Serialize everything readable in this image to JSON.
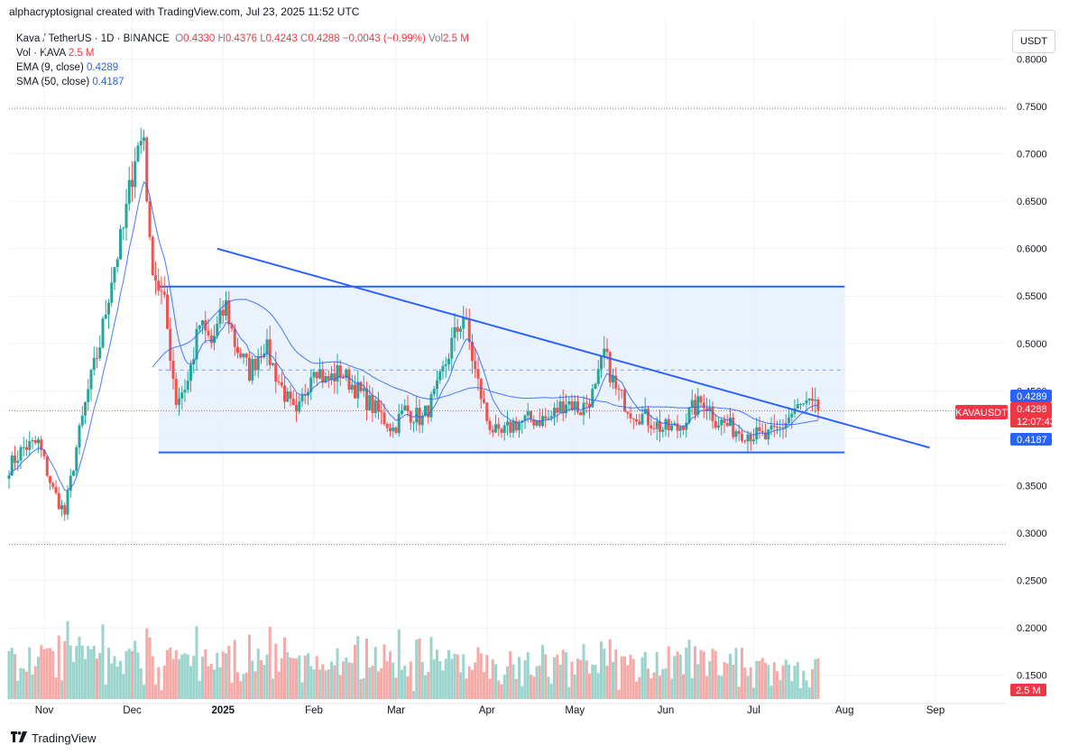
{
  "credit": "alphacryptosignal created with TradingView.com, Jul 23, 2025 11:52 UTC",
  "currency_button": "USDT",
  "logo_text": "TradingView",
  "legend": {
    "symbol": "Kava / TetherUS · 1D · BINANCE",
    "o_label": "O",
    "o": "0.4330",
    "h_label": "H",
    "h": "0.4376",
    "l_label": "L",
    "l": "0.4243",
    "c_label": "C",
    "c": "0.4288",
    "change": "−0.0043 (−0.99%)",
    "vol_label": "Vol",
    "vol": "2.5 M",
    "vol_line_label": "Vol · KAVA",
    "vol_line_value": "2.5 M",
    "ema_label": "EMA (9, close)",
    "ema_value": "0.4289",
    "sma_label": "SMA (50, close)",
    "sma_value": "0.4187"
  },
  "colors": {
    "up": "#26a69a",
    "down": "#ef5350",
    "line": "#2962ff",
    "box": "#e3edfc",
    "vol_up": "#9bd4cc",
    "vol_down": "#f5aaa8"
  },
  "price_badges": {
    "symbol_tag": "KAVAUSDT",
    "ema": "0.4289",
    "close": "0.4288",
    "countdown": "12:07:43",
    "sma": "0.4187",
    "volume": "2.5 M"
  },
  "chart_data": {
    "type": "candlestick",
    "y_ticks": [
      "0.8000",
      "0.7500",
      "0.7000",
      "0.6500",
      "0.6000",
      "0.5500",
      "0.5000",
      "0.4500",
      "0.4000",
      "0.3500",
      "0.3000",
      "0.2500",
      "0.2000",
      "0.1500"
    ],
    "x_ticks": [
      "Nov",
      "Dec",
      "2025",
      "Feb",
      "Mar",
      "Apr",
      "May",
      "Jun",
      "Jul",
      "Aug",
      "Sep"
    ],
    "ylim": [
      0.13,
      0.82
    ],
    "series": [
      {
        "name": "Kava / TetherUS · 1D · BINANCE",
        "kind": "candles"
      },
      {
        "name": "EMA (9, close)",
        "last": 0.4289
      },
      {
        "name": "SMA (50, close)",
        "last": 0.4187
      }
    ],
    "close_path": [
      [
        "2024-10-20",
        0.37
      ],
      [
        "2024-10-25",
        0.39
      ],
      [
        "2024-10-30",
        0.395
      ],
      [
        "2024-11-04",
        0.345
      ],
      [
        "2024-11-08",
        0.32
      ],
      [
        "2024-11-12",
        0.39
      ],
      [
        "2024-11-16",
        0.45
      ],
      [
        "2024-11-20",
        0.5
      ],
      [
        "2024-11-24",
        0.57
      ],
      [
        "2024-11-28",
        0.62
      ],
      [
        "2024-12-02",
        0.7
      ],
      [
        "2024-12-05",
        0.72
      ],
      [
        "2024-12-07",
        0.6
      ],
      [
        "2024-12-09",
        0.57
      ],
      [
        "2024-12-12",
        0.54
      ],
      [
        "2024-12-16",
        0.44
      ],
      [
        "2024-12-20",
        0.46
      ],
      [
        "2024-12-24",
        0.52
      ],
      [
        "2024-12-28",
        0.5
      ],
      [
        "2025-01-02",
        0.54
      ],
      [
        "2025-01-05",
        0.5
      ],
      [
        "2025-01-10",
        0.47
      ],
      [
        "2025-01-15",
        0.5
      ],
      [
        "2025-01-20",
        0.46
      ],
      [
        "2025-01-26",
        0.42
      ],
      [
        "2025-02-01",
        0.48
      ],
      [
        "2025-02-05",
        0.46
      ],
      [
        "2025-02-10",
        0.47
      ],
      [
        "2025-02-16",
        0.45
      ],
      [
        "2025-02-22",
        0.43
      ],
      [
        "2025-02-28",
        0.41
      ],
      [
        "2025-03-04",
        0.43
      ],
      [
        "2025-03-10",
        0.42
      ],
      [
        "2025-03-15",
        0.45
      ],
      [
        "2025-03-20",
        0.5
      ],
      [
        "2025-03-24",
        0.53
      ],
      [
        "2025-03-28",
        0.47
      ],
      [
        "2025-04-01",
        0.42
      ],
      [
        "2025-04-05",
        0.4
      ],
      [
        "2025-04-10",
        0.415
      ],
      [
        "2025-04-16",
        0.42
      ],
      [
        "2025-04-22",
        0.42
      ],
      [
        "2025-04-28",
        0.44
      ],
      [
        "2025-05-03",
        0.43
      ],
      [
        "2025-05-08",
        0.45
      ],
      [
        "2025-05-11",
        0.49
      ],
      [
        "2025-05-15",
        0.45
      ],
      [
        "2025-05-20",
        0.43
      ],
      [
        "2025-05-26",
        0.42
      ],
      [
        "2025-05-31",
        0.41
      ],
      [
        "2025-06-05",
        0.41
      ],
      [
        "2025-06-10",
        0.43
      ],
      [
        "2025-06-14",
        0.44
      ],
      [
        "2025-06-18",
        0.42
      ],
      [
        "2025-06-24",
        0.41
      ],
      [
        "2025-06-30",
        0.405
      ],
      [
        "2025-07-05",
        0.4
      ],
      [
        "2025-07-10",
        0.41
      ],
      [
        "2025-07-15",
        0.43
      ],
      [
        "2025-07-19",
        0.435
      ],
      [
        "2025-07-23",
        0.4288
      ]
    ],
    "horizontal_levels": [
      0.748,
      0.288
    ],
    "range_box": {
      "top": 0.56,
      "bottom": 0.385,
      "mid": 0.472,
      "from": "2024-12-10",
      "to": "2025-08-01"
    },
    "trendline": {
      "from": [
        "2024-12-30",
        0.6
      ],
      "to": [
        "2025-08-30",
        0.39
      ]
    }
  }
}
